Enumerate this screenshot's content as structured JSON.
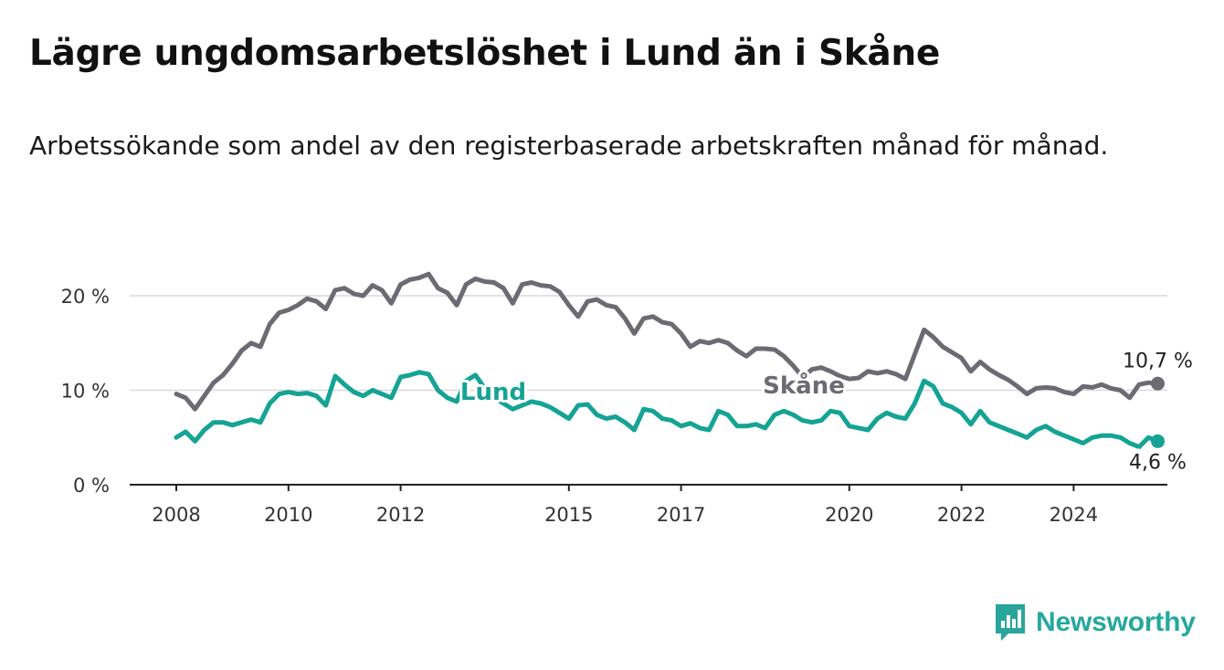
{
  "title": "Lägre ungdomsarbetslöshet i Lund än i Skåne",
  "subtitle": "Arbetssökande som andel av den registerbaserade arbetskraften månad för månad.",
  "brand": {
    "name": "Newsworthy",
    "color": "#2aa59b"
  },
  "chart_data": {
    "type": "line",
    "title": "Lägre ungdomsarbetslöshet i Lund än i Skåne",
    "subtitle": "Arbetssökande som andel av den registerbaserade arbetskraften månad för månad.",
    "xlabel": "",
    "ylabel": "",
    "x_ticks": [
      "2008",
      "2010",
      "2012",
      "2015",
      "2017",
      "2020",
      "2022",
      "2024"
    ],
    "y_ticks": [
      "0 %",
      "10 %",
      "20 %"
    ],
    "ylim": [
      0,
      25
    ],
    "xlim": [
      "2007-07",
      "2025-10"
    ],
    "grid": "horizontal",
    "legend": "inline labels",
    "series": [
      {
        "name": "Skåne",
        "color": "#6b6b73",
        "end_label": "10,7 %",
        "points": [
          [
            "2008-01",
            9.6
          ],
          [
            "2008-03",
            9.2
          ],
          [
            "2008-05",
            8.0
          ],
          [
            "2008-07",
            9.4
          ],
          [
            "2008-09",
            10.8
          ],
          [
            "2008-11",
            11.6
          ],
          [
            "2009-01",
            12.8
          ],
          [
            "2009-03",
            14.2
          ],
          [
            "2009-05",
            15.0
          ],
          [
            "2009-07",
            14.6
          ],
          [
            "2009-09",
            17.0
          ],
          [
            "2009-11",
            18.2
          ],
          [
            "2010-01",
            18.5
          ],
          [
            "2010-03",
            19.0
          ],
          [
            "2010-05",
            19.7
          ],
          [
            "2010-07",
            19.4
          ],
          [
            "2010-09",
            18.6
          ],
          [
            "2010-11",
            20.6
          ],
          [
            "2011-01",
            20.8
          ],
          [
            "2011-03",
            20.2
          ],
          [
            "2011-05",
            20.0
          ],
          [
            "2011-07",
            21.1
          ],
          [
            "2011-09",
            20.6
          ],
          [
            "2011-11",
            19.2
          ],
          [
            "2012-01",
            21.2
          ],
          [
            "2012-03",
            21.7
          ],
          [
            "2012-05",
            21.9
          ],
          [
            "2012-07",
            22.3
          ],
          [
            "2012-09",
            20.8
          ],
          [
            "2012-11",
            20.3
          ],
          [
            "2013-01",
            19.0
          ],
          [
            "2013-03",
            21.2
          ],
          [
            "2013-05",
            21.8
          ],
          [
            "2013-07",
            21.5
          ],
          [
            "2013-09",
            21.4
          ],
          [
            "2013-11",
            20.8
          ],
          [
            "2014-01",
            19.2
          ],
          [
            "2014-03",
            21.2
          ],
          [
            "2014-05",
            21.4
          ],
          [
            "2014-07",
            21.1
          ],
          [
            "2014-09",
            21.0
          ],
          [
            "2014-11",
            20.4
          ],
          [
            "2015-01",
            19.0
          ],
          [
            "2015-03",
            17.8
          ],
          [
            "2015-05",
            19.4
          ],
          [
            "2015-07",
            19.6
          ],
          [
            "2015-09",
            19.0
          ],
          [
            "2015-11",
            18.8
          ],
          [
            "2016-01",
            17.6
          ],
          [
            "2016-03",
            16.0
          ],
          [
            "2016-05",
            17.6
          ],
          [
            "2016-07",
            17.8
          ],
          [
            "2016-09",
            17.2
          ],
          [
            "2016-11",
            17.0
          ],
          [
            "2017-01",
            16.0
          ],
          [
            "2017-03",
            14.6
          ],
          [
            "2017-05",
            15.2
          ],
          [
            "2017-07",
            15.0
          ],
          [
            "2017-09",
            15.3
          ],
          [
            "2017-11",
            15.0
          ],
          [
            "2018-01",
            14.2
          ],
          [
            "2018-03",
            13.6
          ],
          [
            "2018-05",
            14.4
          ],
          [
            "2018-07",
            14.4
          ],
          [
            "2018-09",
            14.3
          ],
          [
            "2018-11",
            13.6
          ],
          [
            "2019-01",
            12.6
          ],
          [
            "2019-03",
            11.4
          ],
          [
            "2019-05",
            12.2
          ],
          [
            "2019-07",
            12.4
          ],
          [
            "2019-09",
            12.0
          ],
          [
            "2019-11",
            11.5
          ],
          [
            "2020-01",
            11.2
          ],
          [
            "2020-03",
            11.3
          ],
          [
            "2020-05",
            12.0
          ],
          [
            "2020-07",
            11.8
          ],
          [
            "2020-09",
            12.0
          ],
          [
            "2020-11",
            11.7
          ],
          [
            "2021-01",
            11.2
          ],
          [
            "2021-03",
            13.8
          ],
          [
            "2021-05",
            16.4
          ],
          [
            "2021-07",
            15.6
          ],
          [
            "2021-09",
            14.6
          ],
          [
            "2021-11",
            14.0
          ],
          [
            "2022-01",
            13.4
          ],
          [
            "2022-03",
            12.0
          ],
          [
            "2022-05",
            13.0
          ],
          [
            "2022-07",
            12.2
          ],
          [
            "2022-09",
            11.6
          ],
          [
            "2022-11",
            11.1
          ],
          [
            "2023-01",
            10.4
          ],
          [
            "2023-03",
            9.6
          ],
          [
            "2023-05",
            10.2
          ],
          [
            "2023-07",
            10.3
          ],
          [
            "2023-09",
            10.2
          ],
          [
            "2023-11",
            9.8
          ],
          [
            "2024-01",
            9.6
          ],
          [
            "2024-03",
            10.4
          ],
          [
            "2024-05",
            10.3
          ],
          [
            "2024-07",
            10.6
          ],
          [
            "2024-09",
            10.2
          ],
          [
            "2024-11",
            10.0
          ],
          [
            "2025-01",
            9.2
          ],
          [
            "2025-03",
            10.6
          ],
          [
            "2025-05",
            10.8
          ],
          [
            "2025-07",
            10.7
          ]
        ]
      },
      {
        "name": "Lund",
        "color": "#14a394",
        "end_label": "4,6 %",
        "points": [
          [
            "2008-01",
            5.0
          ],
          [
            "2008-03",
            5.6
          ],
          [
            "2008-05",
            4.6
          ],
          [
            "2008-07",
            5.8
          ],
          [
            "2008-09",
            6.6
          ],
          [
            "2008-11",
            6.6
          ],
          [
            "2009-01",
            6.3
          ],
          [
            "2009-03",
            6.6
          ],
          [
            "2009-05",
            6.9
          ],
          [
            "2009-07",
            6.6
          ],
          [
            "2009-09",
            8.6
          ],
          [
            "2009-11",
            9.6
          ],
          [
            "2010-01",
            9.8
          ],
          [
            "2010-03",
            9.6
          ],
          [
            "2010-05",
            9.7
          ],
          [
            "2010-07",
            9.4
          ],
          [
            "2010-09",
            8.4
          ],
          [
            "2010-11",
            11.5
          ],
          [
            "2011-01",
            10.6
          ],
          [
            "2011-03",
            9.8
          ],
          [
            "2011-05",
            9.4
          ],
          [
            "2011-07",
            10.0
          ],
          [
            "2011-09",
            9.6
          ],
          [
            "2011-11",
            9.2
          ],
          [
            "2012-01",
            11.4
          ],
          [
            "2012-03",
            11.6
          ],
          [
            "2012-05",
            11.9
          ],
          [
            "2012-07",
            11.7
          ],
          [
            "2012-09",
            10.0
          ],
          [
            "2012-11",
            9.2
          ],
          [
            "2013-01",
            8.8
          ],
          [
            "2013-03",
            11.0
          ],
          [
            "2013-05",
            11.6
          ],
          [
            "2013-07",
            10.2
          ],
          [
            "2013-09",
            9.2
          ],
          [
            "2013-11",
            8.6
          ],
          [
            "2014-01",
            8.0
          ],
          [
            "2014-03",
            8.4
          ],
          [
            "2014-05",
            8.8
          ],
          [
            "2014-07",
            8.6
          ],
          [
            "2014-09",
            8.2
          ],
          [
            "2014-11",
            7.6
          ],
          [
            "2015-01",
            7.0
          ],
          [
            "2015-03",
            8.4
          ],
          [
            "2015-05",
            8.5
          ],
          [
            "2015-07",
            7.4
          ],
          [
            "2015-09",
            7.0
          ],
          [
            "2015-11",
            7.2
          ],
          [
            "2016-01",
            6.6
          ],
          [
            "2016-03",
            5.8
          ],
          [
            "2016-05",
            8.0
          ],
          [
            "2016-07",
            7.8
          ],
          [
            "2016-09",
            7.0
          ],
          [
            "2016-11",
            6.8
          ],
          [
            "2017-01",
            6.2
          ],
          [
            "2017-03",
            6.5
          ],
          [
            "2017-05",
            6.0
          ],
          [
            "2017-07",
            5.8
          ],
          [
            "2017-09",
            7.8
          ],
          [
            "2017-11",
            7.4
          ],
          [
            "2018-01",
            6.2
          ],
          [
            "2018-03",
            6.2
          ],
          [
            "2018-05",
            6.4
          ],
          [
            "2018-07",
            6.0
          ],
          [
            "2018-09",
            7.4
          ],
          [
            "2018-11",
            7.8
          ],
          [
            "2019-01",
            7.4
          ],
          [
            "2019-03",
            6.8
          ],
          [
            "2019-05",
            6.6
          ],
          [
            "2019-07",
            6.8
          ],
          [
            "2019-09",
            7.8
          ],
          [
            "2019-11",
            7.6
          ],
          [
            "2020-01",
            6.2
          ],
          [
            "2020-03",
            6.0
          ],
          [
            "2020-05",
            5.8
          ],
          [
            "2020-07",
            7.0
          ],
          [
            "2020-09",
            7.6
          ],
          [
            "2020-11",
            7.2
          ],
          [
            "2021-01",
            7.0
          ],
          [
            "2021-03",
            8.6
          ],
          [
            "2021-05",
            11.0
          ],
          [
            "2021-07",
            10.4
          ],
          [
            "2021-09",
            8.6
          ],
          [
            "2021-11",
            8.2
          ],
          [
            "2022-01",
            7.6
          ],
          [
            "2022-03",
            6.4
          ],
          [
            "2022-05",
            7.8
          ],
          [
            "2022-07",
            6.6
          ],
          [
            "2022-09",
            6.2
          ],
          [
            "2022-11",
            5.8
          ],
          [
            "2023-01",
            5.4
          ],
          [
            "2023-03",
            5.0
          ],
          [
            "2023-05",
            5.8
          ],
          [
            "2023-07",
            6.2
          ],
          [
            "2023-09",
            5.6
          ],
          [
            "2023-11",
            5.2
          ],
          [
            "2024-01",
            4.8
          ],
          [
            "2024-03",
            4.4
          ],
          [
            "2024-05",
            5.0
          ],
          [
            "2024-07",
            5.2
          ],
          [
            "2024-09",
            5.2
          ],
          [
            "2024-11",
            5.0
          ],
          [
            "2025-01",
            4.4
          ],
          [
            "2025-03",
            4.0
          ],
          [
            "2025-05",
            5.0
          ],
          [
            "2025-07",
            4.6
          ]
        ]
      }
    ]
  }
}
